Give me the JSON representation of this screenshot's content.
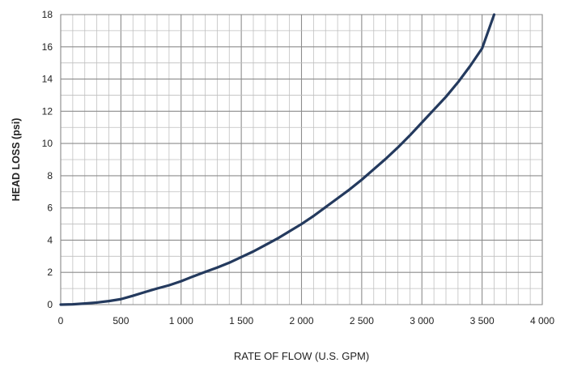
{
  "chart_data": {
    "type": "line",
    "title": "",
    "xlabel": "RATE OF FLOW (U.S. GPM)",
    "ylabel": "HEAD LOSS (psi)",
    "xlim": [
      0,
      4000
    ],
    "ylim": [
      0,
      18
    ],
    "grid": true,
    "x_tick_labels": [
      "0",
      "500",
      "1 000",
      "1 500",
      "2 000",
      "2 500",
      "3 000",
      "3 500",
      "4 000"
    ],
    "y_tick_labels": [
      "0",
      "2",
      "4",
      "6",
      "8",
      "10",
      "12",
      "14",
      "16",
      "18"
    ],
    "series": [
      {
        "color": "#243a5e",
        "x": [
          0,
          100,
          200,
          300,
          400,
          500,
          600,
          700,
          800,
          900,
          1000,
          1100,
          1200,
          1300,
          1400,
          1500,
          1600,
          1700,
          1800,
          1900,
          2000,
          2100,
          2200,
          2300,
          2400,
          2500,
          2600,
          2700,
          2800,
          2900,
          3000,
          3100,
          3200,
          3300,
          3400,
          3500,
          3600
        ],
        "y": [
          0,
          0.02,
          0.07,
          0.13,
          0.22,
          0.34,
          0.55,
          0.78,
          1.0,
          1.2,
          1.45,
          1.75,
          2.03,
          2.3,
          2.6,
          2.95,
          3.3,
          3.7,
          4.1,
          4.55,
          5.0,
          5.5,
          6.05,
          6.6,
          7.15,
          7.75,
          8.4,
          9.05,
          9.75,
          10.5,
          11.3,
          12.1,
          12.9,
          13.8,
          14.8,
          15.9,
          18.0
        ]
      }
    ]
  }
}
